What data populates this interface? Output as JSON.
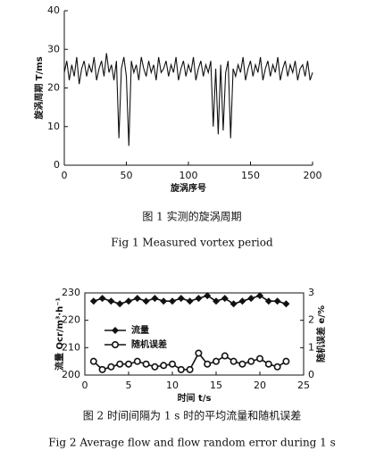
{
  "chart_data": [
    {
      "type": "line",
      "x_label": "旋涡序号",
      "y_label": "旋涡周期 T/ms",
      "caption_cn": "图 1   实测的旋涡周期",
      "caption_en": "Fig 1  Measured vortex period",
      "color": "#111111",
      "box": false,
      "xlim": [
        0,
        200
      ],
      "xticks": [
        0,
        50,
        100,
        150,
        200
      ],
      "ylim": [
        0,
        40
      ],
      "yticks": [
        0,
        10,
        20,
        30,
        40
      ],
      "x": [
        0,
        2,
        4,
        6,
        8,
        10,
        12,
        14,
        16,
        18,
        20,
        22,
        24,
        26,
        28,
        30,
        32,
        34,
        36,
        38,
        40,
        42,
        44,
        46,
        48,
        50,
        52,
        54,
        56,
        58,
        60,
        62,
        64,
        66,
        68,
        70,
        72,
        74,
        76,
        78,
        80,
        82,
        84,
        86,
        88,
        90,
        92,
        94,
        96,
        98,
        100,
        102,
        104,
        106,
        108,
        110,
        112,
        114,
        116,
        118,
        120,
        122,
        124,
        126,
        128,
        130,
        132,
        134,
        136,
        138,
        140,
        142,
        144,
        146,
        148,
        150,
        152,
        154,
        156,
        158,
        160,
        162,
        164,
        166,
        168,
        170,
        172,
        174,
        176,
        178,
        180,
        182,
        184,
        186,
        188,
        190,
        192,
        194,
        196,
        198,
        200
      ],
      "values": [
        24,
        27,
        22,
        26,
        23,
        28,
        21,
        25,
        27,
        23,
        26,
        24,
        28,
        22,
        25,
        27,
        23,
        29,
        24,
        26,
        22,
        27,
        7,
        25,
        28,
        23,
        5,
        27,
        24,
        26,
        22,
        28,
        25,
        23,
        27,
        24,
        26,
        22,
        28,
        24,
        25,
        27,
        23,
        26,
        24,
        28,
        22,
        25,
        27,
        23,
        26,
        24,
        28,
        22,
        25,
        27,
        23,
        26,
        24,
        27,
        10,
        25,
        8,
        26,
        9,
        24,
        27,
        7,
        25,
        23,
        26,
        24,
        28,
        22,
        25,
        27,
        23,
        26,
        24,
        28,
        22,
        25,
        27,
        23,
        26,
        24,
        28,
        22,
        25,
        27,
        23,
        26,
        24,
        27,
        22,
        25,
        26,
        23,
        27,
        22,
        24
      ]
    },
    {
      "type": "line",
      "x_label": "时间 t/s",
      "y_label": "流量 Qcr/m³·h⁻¹",
      "y2_label": "随机误差 e/%",
      "caption_cn": "图 2   时间间隔为 1 s 时的平均流量和随机误差",
      "caption_en": "Fig 2  Average flow and flow random error during 1 s",
      "box": true,
      "legend": "center-left",
      "xlim": [
        0,
        25
      ],
      "xticks": [
        0,
        5,
        10,
        15,
        20,
        25
      ],
      "ylim": [
        200,
        230
      ],
      "yticks": [
        200,
        210,
        220,
        230
      ],
      "y2lim": [
        0,
        3
      ],
      "y2ticks": [
        0,
        1,
        2,
        3
      ],
      "x": [
        1,
        2,
        3,
        4,
        5,
        6,
        7,
        8,
        9,
        10,
        11,
        12,
        13,
        14,
        15,
        16,
        17,
        18,
        19,
        20,
        21,
        22,
        23
      ],
      "series": [
        {
          "name": "流量",
          "color": "#111111",
          "marker": "diamond",
          "values": [
            227,
            228,
            227,
            226,
            227,
            228,
            227,
            228,
            227,
            227,
            228,
            227,
            228,
            229,
            227,
            228,
            226,
            227,
            228,
            229,
            227,
            227,
            226
          ]
        },
        {
          "name": "随机误差",
          "color": "#111111",
          "marker": "circle",
          "axis": "y2",
          "values": [
            0.5,
            0.2,
            0.3,
            0.4,
            0.4,
            0.5,
            0.4,
            0.3,
            0.35,
            0.4,
            0.2,
            0.2,
            0.8,
            0.4,
            0.5,
            0.7,
            0.5,
            0.4,
            0.5,
            0.6,
            0.4,
            0.3,
            0.5
          ]
        }
      ]
    }
  ]
}
